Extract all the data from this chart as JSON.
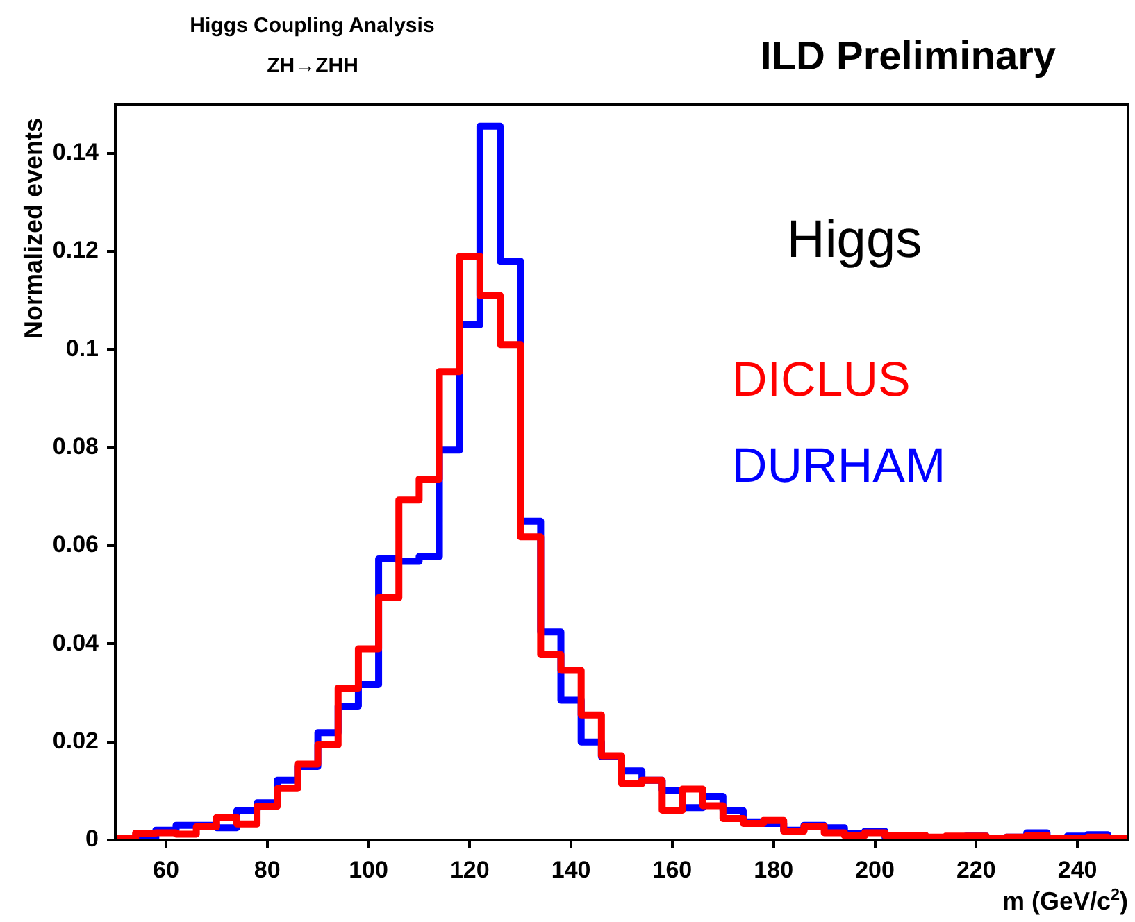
{
  "chart_data": {
    "type": "histogram",
    "title": "ILD Preliminary",
    "annotations": [
      "Higgs Coupling Analysis",
      "ZH→ZHH",
      "Higgs"
    ],
    "xlabel": "m (GeV/c$^{2}$)",
    "ylabel": "Normalized events",
    "bins": [
      50,
      54,
      58,
      62,
      66,
      70,
      74,
      78,
      82,
      86,
      90,
      94,
      98,
      102,
      106,
      110,
      114,
      118,
      122,
      126,
      130,
      134,
      138,
      142,
      146,
      150,
      154,
      158,
      162,
      166,
      170,
      174,
      178,
      182,
      186,
      190,
      194,
      198,
      202,
      206,
      210,
      214,
      218,
      222,
      226,
      230,
      234,
      238,
      242,
      246,
      250
    ],
    "series": [
      {
        "name": "DURHAM",
        "color": "#0000ff",
        "values": [
          0.0002,
          0.0003,
          0.002,
          0.003,
          0.003,
          0.0025,
          0.006,
          0.0076,
          0.0122,
          0.015,
          0.0219,
          0.0273,
          0.0317,
          0.0573,
          0.0568,
          0.0578,
          0.0795,
          0.105,
          0.1455,
          0.118,
          0.065,
          0.0424,
          0.0285,
          0.02,
          0.017,
          0.0141,
          0.0122,
          0.0102,
          0.0066,
          0.0089,
          0.006,
          0.0037,
          0.0034,
          0.002,
          0.003,
          0.0025,
          0.0013,
          0.0018,
          0.0006,
          0.0009,
          0.0004,
          0.0002,
          0.0008,
          0.0004,
          0.0006,
          0.0015,
          0.0004,
          0.0008,
          0.0011,
          0.0004
        ]
      },
      {
        "name": "DICLUS",
        "color": "#ff0000",
        "values": [
          0.0003,
          0.0014,
          0.0015,
          0.0012,
          0.0027,
          0.0046,
          0.0033,
          0.0069,
          0.0105,
          0.0155,
          0.0194,
          0.031,
          0.039,
          0.0494,
          0.0693,
          0.0736,
          0.0955,
          0.119,
          0.111,
          0.101,
          0.0618,
          0.0378,
          0.0346,
          0.0255,
          0.0172,
          0.0115,
          0.0122,
          0.0061,
          0.0104,
          0.007,
          0.0044,
          0.0034,
          0.004,
          0.0018,
          0.0028,
          0.0015,
          0.0009,
          0.0015,
          0.0009,
          0.001,
          0.0006,
          0.0008,
          0.0008,
          0.0004,
          0.0006,
          0.001,
          0.0004,
          0.0004,
          0.0006,
          0.0004
        ]
      }
    ],
    "xlim": [
      50,
      250
    ],
    "xticks": [
      60,
      80,
      100,
      120,
      140,
      160,
      180,
      200,
      220,
      240
    ],
    "ylim": [
      0,
      0.15
    ],
    "yticks": [
      0,
      0.02,
      0.04,
      0.06,
      0.08,
      0.1,
      0.12,
      0.14
    ],
    "grid": false,
    "legend": "right",
    "line_style": "solid"
  }
}
